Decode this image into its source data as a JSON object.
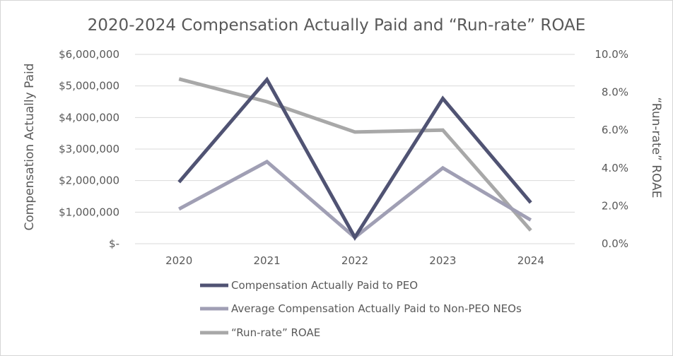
{
  "chart_data": {
    "type": "line",
    "title": "2020-2024 Compensation Actually Paid and “Run-rate” ROAE",
    "categories": [
      "2020",
      "2021",
      "2022",
      "2023",
      "2024"
    ],
    "y_left": {
      "label": "Compensation Actually Paid",
      "range": [
        0,
        6000000
      ],
      "ticks": [
        0,
        1000000,
        2000000,
        3000000,
        4000000,
        5000000,
        6000000
      ],
      "tick_labels": [
        "$-",
        "$1,000,000",
        "$2,000,000",
        "$3,000,000",
        "$4,000,000",
        "$5,000,000",
        "$6,000,000"
      ]
    },
    "y_right": {
      "label": "“Run-rate” ROAE",
      "range": [
        0,
        10
      ],
      "ticks": [
        0,
        2,
        4,
        6,
        8,
        10
      ],
      "tick_labels": [
        "0.0%",
        "2.0%",
        "4.0%",
        "6.0%",
        "8.0%",
        "10.0%"
      ]
    },
    "grid": true,
    "legend_position": "bottom",
    "series": [
      {
        "name": "Compensation Actually Paid to PEO",
        "axis": "left",
        "color": "#505373",
        "values": [
          1950000,
          5200000,
          200000,
          4600000,
          1300000
        ]
      },
      {
        "name": "Average Compensation Actually Paid to Non-PEO NEOs",
        "axis": "left",
        "color": "#a09fb4",
        "values": [
          1100000,
          2600000,
          200000,
          2400000,
          750000
        ]
      },
      {
        "name": "“Run-rate” ROAE",
        "axis": "right",
        "color": "#a8a8a8",
        "values": [
          8.7,
          7.5,
          5.9,
          6.0,
          0.7
        ]
      }
    ]
  }
}
